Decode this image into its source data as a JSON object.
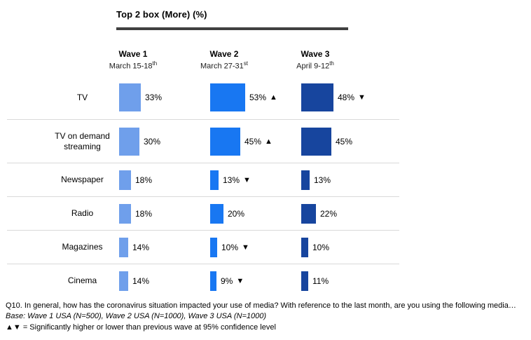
{
  "title": "Top 2 box (More) (%)",
  "columns": [
    {
      "wave": "Wave 1",
      "dates": "March 15-18",
      "dates_sup": "th"
    },
    {
      "wave": "Wave 2",
      "dates": "March 27-31",
      "dates_sup": "st"
    },
    {
      "wave": "Wave 3",
      "dates": "April 9-12",
      "dates_sup": "th"
    }
  ],
  "chart_data": {
    "type": "bar",
    "title": "Top 2 box (More) (%)",
    "categories": [
      "TV",
      "TV on demand streaming",
      "Newspaper",
      "Radio",
      "Magazines",
      "Cinema"
    ],
    "series": [
      {
        "name": "Wave 1",
        "dates": "March 15-18th",
        "color": "#6F9FEB",
        "values": [
          33,
          30,
          18,
          18,
          14,
          14
        ],
        "markers": [
          "",
          "",
          "",
          "",
          "",
          ""
        ]
      },
      {
        "name": "Wave 2",
        "dates": "March 27-31st",
        "color": "#1877F2",
        "values": [
          53,
          45,
          13,
          20,
          10,
          9
        ],
        "markers": [
          "▲",
          "▲",
          "▼",
          "",
          "▼",
          "▼"
        ]
      },
      {
        "name": "Wave 3",
        "dates": "April 9-12th",
        "color": "#17459E",
        "values": [
          48,
          45,
          13,
          22,
          10,
          11
        ],
        "markers": [
          "▼",
          "",
          "",
          "",
          "",
          ""
        ]
      }
    ],
    "value_suffix": "%",
    "marker_meaning": "Significantly higher or lower than previous wave at 95% confidence level",
    "legend_position": "none",
    "grid": "row-separators"
  },
  "footer": {
    "question": "Q10. In general, how has the coronavirus situation impacted your use of media? With reference to the last month, are you using the following media…",
    "base": "Base: Wave 1 USA (N=500), Wave 2 USA (N=1000), Wave 3 USA (N=1000)",
    "note": "▲▼ = Significantly higher or lower than previous wave at 95% confidence level"
  }
}
